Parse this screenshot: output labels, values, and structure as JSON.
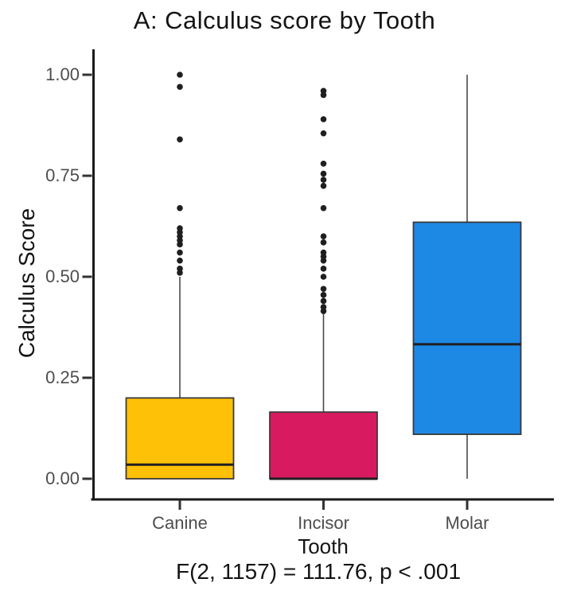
{
  "chart_data": {
    "type": "boxplot",
    "title": "A: Calculus score by Tooth",
    "xlabel": "Tooth",
    "ylabel": "Calculus Score",
    "caption": "F(2, 1157) = 111.76, p < .001",
    "categories": [
      "Canine",
      "Incisor",
      "Molar"
    ],
    "ylim": [
      0,
      1
    ],
    "grid": false,
    "legend": "none",
    "y_ticks": [
      {
        "value": 0.0,
        "label": "0.00"
      },
      {
        "value": 0.25,
        "label": "0.25"
      },
      {
        "value": 0.5,
        "label": "0.50"
      },
      {
        "value": 0.75,
        "label": "0.75"
      },
      {
        "value": 1.0,
        "label": "1.00"
      }
    ],
    "series": [
      {
        "name": "Canine",
        "fill": "#FFC107",
        "whisker_low": 0.0,
        "q1": 0.0,
        "median": 0.035,
        "q3": 0.2,
        "whisker_high": 0.5,
        "outliers": [
          0.51,
          0.52,
          0.54,
          0.56,
          0.58,
          0.59,
          0.6,
          0.61,
          0.62,
          0.67,
          0.84,
          0.97,
          1.0
        ]
      },
      {
        "name": "Incisor",
        "fill": "#D81B60",
        "whisker_low": 0.0,
        "q1": 0.0,
        "median": 0.0,
        "q3": 0.165,
        "whisker_high": 0.41,
        "outliers": [
          0.415,
          0.425,
          0.44,
          0.455,
          0.47,
          0.5,
          0.52,
          0.54,
          0.55,
          0.56,
          0.585,
          0.6,
          0.67,
          0.725,
          0.74,
          0.755,
          0.78,
          0.855,
          0.89,
          0.95,
          0.96
        ]
      },
      {
        "name": "Molar",
        "fill": "#1E88E5",
        "whisker_low": 0.0,
        "q1": 0.11,
        "median": 0.333,
        "q3": 0.635,
        "whisker_high": 1.0,
        "outliers": []
      }
    ],
    "colors": {
      "axis": "#1a1a1a",
      "tick_mark": "#333333",
      "tick_label": "#4d4d4d",
      "box_border": "#3a3a3a",
      "median_line": "#1f1f1f",
      "whisker": "#4a4a4a",
      "outlier_point": "#1f1f1f",
      "background": "#ffffff"
    }
  }
}
